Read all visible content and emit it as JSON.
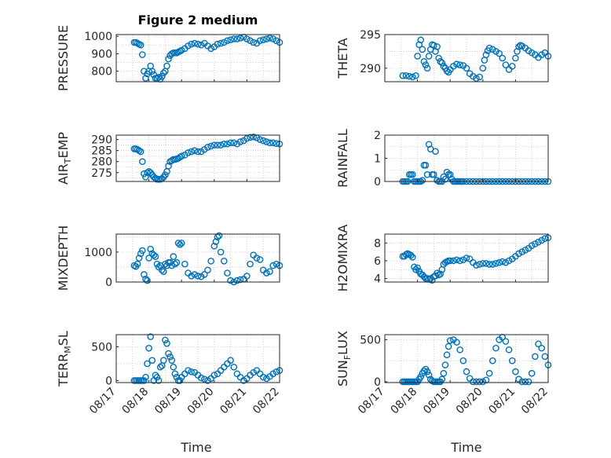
{
  "chart_data": [
    {
      "type": "scatter",
      "title": "Figure 2 medium",
      "ylabel": "PRESSURE",
      "ylim": [
        740,
        1010
      ],
      "yticks": [
        800,
        900,
        1000
      ],
      "ytick_labels": [
        "800",
        "900",
        "1000"
      ],
      "xlim": [
        0,
        5
      ],
      "xticks": [
        0,
        1,
        2,
        3,
        4,
        5
      ],
      "grid": true,
      "x": [
        0.55,
        0.6,
        0.65,
        0.7,
        0.75,
        0.8,
        0.85,
        0.9,
        0.95,
        1.0,
        1.05,
        1.1,
        1.15,
        1.2,
        1.25,
        1.3,
        1.35,
        1.4,
        1.45,
        1.5,
        1.55,
        1.6,
        1.65,
        1.7,
        1.75,
        1.8,
        1.85,
        1.9,
        1.95,
        2.0,
        2.1,
        2.2,
        2.3,
        2.4,
        2.5,
        2.6,
        2.7,
        2.8,
        2.9,
        3.0,
        3.1,
        3.2,
        3.3,
        3.4,
        3.5,
        3.6,
        3.7,
        3.8,
        3.9,
        4.0,
        4.1,
        4.2,
        4.3,
        4.4,
        4.5,
        4.6,
        4.7,
        4.8,
        4.9,
        5.0
      ],
      "y": [
        965,
        965,
        960,
        955,
        950,
        895,
        800,
        760,
        785,
        800,
        830,
        800,
        780,
        760,
        760,
        765,
        755,
        770,
        790,
        800,
        830,
        870,
        890,
        900,
        905,
        905,
        905,
        910,
        915,
        920,
        930,
        945,
        955,
        960,
        955,
        950,
        960,
        945,
        930,
        940,
        955,
        960,
        965,
        975,
        980,
        985,
        985,
        990,
        995,
        985,
        975,
        965,
        960,
        975,
        980,
        985,
        990,
        985,
        975,
        965
      ]
    },
    {
      "type": "scatter",
      "ylabel": "THETA",
      "ylim": [
        288,
        295
      ],
      "yticks": [
        290,
        295
      ],
      "ytick_labels": [
        "290",
        "295"
      ],
      "xlim": [
        0,
        5
      ],
      "xticks": [
        0,
        1,
        2,
        3,
        4,
        5
      ],
      "grid": true,
      "x": [
        0.55,
        0.65,
        0.75,
        0.85,
        0.95,
        1.0,
        1.05,
        1.1,
        1.15,
        1.2,
        1.25,
        1.3,
        1.35,
        1.4,
        1.45,
        1.5,
        1.55,
        1.6,
        1.65,
        1.7,
        1.75,
        1.8,
        1.85,
        1.9,
        1.95,
        2.0,
        2.1,
        2.2,
        2.3,
        2.4,
        2.5,
        2.6,
        2.7,
        2.8,
        2.9,
        3.0,
        3.05,
        3.1,
        3.15,
        3.2,
        3.3,
        3.4,
        3.5,
        3.6,
        3.7,
        3.8,
        3.9,
        4.0,
        4.05,
        4.1,
        4.15,
        4.2,
        4.3,
        4.4,
        4.5,
        4.6,
        4.7,
        4.8,
        4.9,
        5.0
      ],
      "y": [
        288.9,
        288.9,
        288.8,
        288.7,
        288.9,
        291.8,
        293.5,
        294.2,
        292.8,
        291.0,
        290.5,
        290.0,
        291.8,
        292.8,
        293.5,
        293.4,
        292.5,
        293.2,
        291.5,
        291.0,
        290.8,
        290.3,
        290.0,
        289.6,
        289.4,
        289.8,
        290.3,
        290.6,
        290.5,
        290.4,
        290.0,
        289.2,
        288.8,
        288.5,
        288.7,
        290.0,
        291.2,
        292.0,
        292.6,
        293.0,
        292.8,
        292.5,
        292.2,
        291.5,
        290.5,
        289.8,
        290.3,
        291.5,
        292.5,
        293.2,
        293.4,
        293.3,
        293.0,
        292.6,
        292.3,
        292.0,
        291.6,
        292.0,
        292.3,
        291.8
      ]
    },
    {
      "type": "scatter",
      "ylabel": "AIR_TEMP",
      "ylim": [
        271,
        292
      ],
      "yticks": [
        275,
        280,
        285,
        290
      ],
      "ytick_labels": [
        "275",
        "280",
        "285",
        "290"
      ],
      "xlim": [
        0,
        5
      ],
      "xticks": [
        0,
        1,
        2,
        3,
        4,
        5
      ],
      "grid": true,
      "x": [
        0.55,
        0.6,
        0.65,
        0.7,
        0.75,
        0.8,
        0.85,
        0.9,
        0.95,
        1.0,
        1.05,
        1.1,
        1.15,
        1.2,
        1.25,
        1.3,
        1.35,
        1.4,
        1.45,
        1.5,
        1.55,
        1.6,
        1.65,
        1.7,
        1.75,
        1.8,
        1.85,
        1.9,
        1.95,
        2.0,
        2.1,
        2.2,
        2.3,
        2.4,
        2.5,
        2.6,
        2.7,
        2.8,
        2.9,
        3.0,
        3.1,
        3.2,
        3.3,
        3.4,
        3.5,
        3.6,
        3.7,
        3.8,
        3.9,
        4.0,
        4.1,
        4.2,
        4.3,
        4.4,
        4.5,
        4.6,
        4.7,
        4.8,
        4.9,
        5.0
      ],
      "y": [
        285.8,
        285.8,
        285.5,
        285.0,
        284.5,
        280.0,
        274.5,
        273.0,
        275.0,
        275.5,
        275.0,
        274.0,
        273.0,
        272.5,
        272.0,
        272.0,
        272.0,
        272.3,
        273.0,
        274.0,
        275.5,
        278.0,
        280.0,
        280.5,
        281.0,
        281.0,
        281.2,
        281.5,
        282.0,
        282.5,
        283.0,
        284.0,
        284.5,
        285.0,
        284.5,
        284.5,
        285.5,
        286.5,
        287.0,
        287.5,
        287.5,
        287.5,
        288.0,
        288.0,
        288.5,
        288.5,
        288.0,
        289.0,
        289.5,
        290.5,
        291.0,
        291.2,
        290.8,
        290.0,
        289.5,
        289.0,
        288.5,
        288.5,
        288.2,
        288.0
      ]
    },
    {
      "type": "scatter",
      "ylabel": "RAINFALL",
      "ylim": [
        0,
        2
      ],
      "yticks": [
        0,
        1,
        2
      ],
      "ytick_labels": [
        "0",
        "1",
        "2"
      ],
      "xlim": [
        0,
        5
      ],
      "xticks": [
        0,
        1,
        2,
        3,
        4,
        5
      ],
      "grid": true,
      "x": [
        0.55,
        0.6,
        0.65,
        0.7,
        0.75,
        0.8,
        0.85,
        0.9,
        0.95,
        1.0,
        1.05,
        1.1,
        1.15,
        1.2,
        1.25,
        1.3,
        1.35,
        1.4,
        1.45,
        1.5,
        1.55,
        1.6,
        1.65,
        1.7,
        1.75,
        1.8,
        1.85,
        1.9,
        1.95,
        2.0,
        2.05,
        2.1,
        2.15,
        2.2,
        2.25,
        2.3,
        2.35,
        2.4,
        2.5,
        2.6,
        2.7,
        2.8,
        2.9,
        3.0,
        3.1,
        3.2,
        3.3,
        3.4,
        3.5,
        3.6,
        3.7,
        3.8,
        3.9,
        4.0,
        4.1,
        4.2,
        4.3,
        4.4,
        4.5,
        4.6,
        4.7,
        4.8,
        4.9,
        5.0
      ],
      "y": [
        0,
        0,
        0,
        0,
        0.3,
        0.3,
        0.3,
        0,
        0,
        0,
        0,
        0,
        0.05,
        0.7,
        0.7,
        0.3,
        1.6,
        1.4,
        0.3,
        0.3,
        1.3,
        0.05,
        0,
        0,
        0,
        0.2,
        0.1,
        0.4,
        0.3,
        0.3,
        0.1,
        0,
        0,
        0,
        0,
        0,
        0,
        0,
        0,
        0,
        0,
        0,
        0,
        0,
        0,
        0,
        0,
        0,
        0,
        0,
        0,
        0,
        0,
        0,
        0,
        0,
        0,
        0,
        0,
        0,
        0,
        0,
        0,
        0
      ]
    },
    {
      "type": "scatter",
      "ylabel": "MIXDEPTH",
      "ylim": [
        0,
        1600
      ],
      "yticks": [
        0,
        1000
      ],
      "ytick_labels": [
        "0",
        "1000"
      ],
      "xlim": [
        0,
        5
      ],
      "xticks": [
        0,
        1,
        2,
        3,
        4,
        5
      ],
      "grid": true,
      "x": [
        0.55,
        0.6,
        0.65,
        0.7,
        0.75,
        0.8,
        0.85,
        0.9,
        0.95,
        1.0,
        1.05,
        1.1,
        1.15,
        1.2,
        1.25,
        1.3,
        1.35,
        1.4,
        1.45,
        1.5,
        1.55,
        1.6,
        1.65,
        1.7,
        1.75,
        1.8,
        1.85,
        1.9,
        1.95,
        2.0,
        2.1,
        2.2,
        2.3,
        2.4,
        2.5,
        2.6,
        2.7,
        2.8,
        2.9,
        3.0,
        3.05,
        3.1,
        3.15,
        3.2,
        3.3,
        3.4,
        3.5,
        3.6,
        3.7,
        3.8,
        3.9,
        4.0,
        4.1,
        4.2,
        4.3,
        4.4,
        4.5,
        4.6,
        4.7,
        4.8,
        4.9,
        5.0
      ],
      "y": [
        550,
        520,
        600,
        800,
        950,
        1050,
        250,
        100,
        50,
        800,
        1100,
        950,
        900,
        850,
        600,
        500,
        550,
        400,
        350,
        600,
        550,
        650,
        650,
        550,
        850,
        600,
        650,
        1300,
        1250,
        1300,
        600,
        300,
        200,
        250,
        200,
        180,
        250,
        400,
        700,
        1200,
        1350,
        1500,
        1550,
        1000,
        700,
        300,
        50,
        0,
        50,
        80,
        100,
        200,
        600,
        900,
        800,
        750,
        400,
        300,
        350,
        550,
        600,
        550
      ]
    },
    {
      "type": "scatter",
      "ylabel": "H2OMIXRA",
      "ylim": [
        3.6,
        9
      ],
      "yticks": [
        4,
        6,
        8
      ],
      "ytick_labels": [
        "4",
        "6",
        "8"
      ],
      "xlim": [
        0,
        5
      ],
      "xticks": [
        0,
        1,
        2,
        3,
        4,
        5
      ],
      "grid": true,
      "x": [
        0.55,
        0.6,
        0.65,
        0.7,
        0.75,
        0.8,
        0.85,
        0.9,
        0.95,
        1.0,
        1.05,
        1.1,
        1.15,
        1.2,
        1.25,
        1.3,
        1.35,
        1.4,
        1.45,
        1.5,
        1.55,
        1.6,
        1.65,
        1.7,
        1.75,
        1.8,
        1.85,
        1.9,
        1.95,
        2.0,
        2.1,
        2.2,
        2.3,
        2.4,
        2.5,
        2.6,
        2.7,
        2.8,
        2.9,
        3.0,
        3.1,
        3.2,
        3.3,
        3.4,
        3.5,
        3.6,
        3.7,
        3.8,
        3.9,
        4.0,
        4.1,
        4.2,
        4.3,
        4.4,
        4.5,
        4.6,
        4.7,
        4.8,
        4.9,
        5.0
      ],
      "y": [
        6.5,
        6.5,
        6.7,
        6.8,
        6.7,
        6.6,
        6.4,
        5.3,
        5.0,
        5.2,
        4.8,
        4.5,
        4.4,
        4.2,
        4.0,
        4.0,
        3.9,
        4.0,
        3.8,
        4.2,
        4.3,
        4.6,
        4.4,
        4.5,
        5.0,
        5.6,
        5.8,
        5.9,
        6.0,
        6.0,
        6.0,
        6.1,
        6.0,
        6.1,
        6.3,
        6.2,
        5.8,
        5.5,
        5.6,
        5.7,
        5.7,
        5.6,
        5.6,
        5.7,
        5.8,
        5.9,
        5.8,
        6.0,
        6.2,
        6.5,
        6.8,
        7.0,
        7.2,
        7.4,
        7.7,
        7.9,
        8.1,
        8.3,
        8.5,
        8.6
      ]
    },
    {
      "type": "scatter",
      "ylabel": "TERR_MSL",
      "ylim": [
        -30,
        680
      ],
      "yticks": [
        0,
        500
      ],
      "ytick_labels": [
        "0",
        "500"
      ],
      "xlim": [
        0,
        5
      ],
      "xticks": [
        0,
        1,
        2,
        3,
        4,
        5
      ],
      "grid": true,
      "x": [
        0.55,
        0.6,
        0.65,
        0.7,
        0.75,
        0.8,
        0.85,
        0.9,
        0.95,
        1.0,
        1.05,
        1.1,
        1.15,
        1.2,
        1.25,
        1.3,
        1.35,
        1.4,
        1.45,
        1.5,
        1.55,
        1.6,
        1.65,
        1.7,
        1.75,
        1.8,
        1.85,
        1.9,
        1.95,
        2.0,
        2.1,
        2.2,
        2.3,
        2.4,
        2.5,
        2.6,
        2.7,
        2.8,
        2.9,
        3.0,
        3.1,
        3.2,
        3.3,
        3.4,
        3.5,
        3.6,
        3.7,
        3.8,
        3.9,
        4.0,
        4.1,
        4.2,
        4.3,
        4.4,
        4.5,
        4.6,
        4.7,
        4.8,
        4.9,
        5.0
      ],
      "y": [
        0,
        0,
        0,
        0,
        0,
        0,
        0,
        50,
        250,
        480,
        650,
        300,
        0,
        80,
        50,
        0,
        200,
        220,
        300,
        600,
        550,
        400,
        350,
        300,
        200,
        100,
        50,
        0,
        0,
        50,
        100,
        150,
        130,
        120,
        80,
        40,
        20,
        0,
        30,
        80,
        100,
        150,
        200,
        250,
        300,
        200,
        100,
        50,
        0,
        30,
        80,
        120,
        150,
        100,
        50,
        30,
        60,
        100,
        130,
        150
      ]
    },
    {
      "type": "scatter",
      "ylabel": "SUN_FLUX",
      "ylim": [
        -10,
        560
      ],
      "yticks": [
        0,
        500
      ],
      "ytick_labels": [
        "0",
        "500"
      ],
      "xlim": [
        0,
        5
      ],
      "xticks": [
        0,
        1,
        2,
        3,
        4,
        5
      ],
      "grid": true,
      "x": [
        0.55,
        0.6,
        0.65,
        0.7,
        0.75,
        0.8,
        0.85,
        0.9,
        0.95,
        1.0,
        1.05,
        1.1,
        1.15,
        1.2,
        1.25,
        1.3,
        1.35,
        1.4,
        1.45,
        1.5,
        1.55,
        1.6,
        1.65,
        1.7,
        1.75,
        1.8,
        1.85,
        1.9,
        1.95,
        2.0,
        2.1,
        2.2,
        2.3,
        2.4,
        2.5,
        2.6,
        2.7,
        2.8,
        2.9,
        3.0,
        3.1,
        3.2,
        3.3,
        3.4,
        3.5,
        3.6,
        3.7,
        3.8,
        3.9,
        4.0,
        4.1,
        4.2,
        4.3,
        4.4,
        4.5,
        4.6,
        4.7,
        4.8,
        4.9,
        5.0
      ],
      "y": [
        0,
        0,
        0,
        0,
        0,
        0,
        0,
        0,
        0,
        0,
        30,
        60,
        100,
        130,
        150,
        120,
        80,
        30,
        10,
        0,
        0,
        0,
        0,
        0,
        30,
        100,
        200,
        320,
        420,
        490,
        500,
        470,
        380,
        250,
        120,
        40,
        0,
        0,
        0,
        0,
        20,
        100,
        250,
        400,
        500,
        530,
        480,
        380,
        250,
        120,
        30,
        0,
        0,
        0,
        100,
        300,
        450,
        400,
        300,
        200
      ]
    }
  ],
  "xaxis": {
    "tick_labels": [
      "08/17",
      "08/18",
      "08/19",
      "08/20",
      "08/21",
      "08/22"
    ],
    "label": "Time"
  }
}
